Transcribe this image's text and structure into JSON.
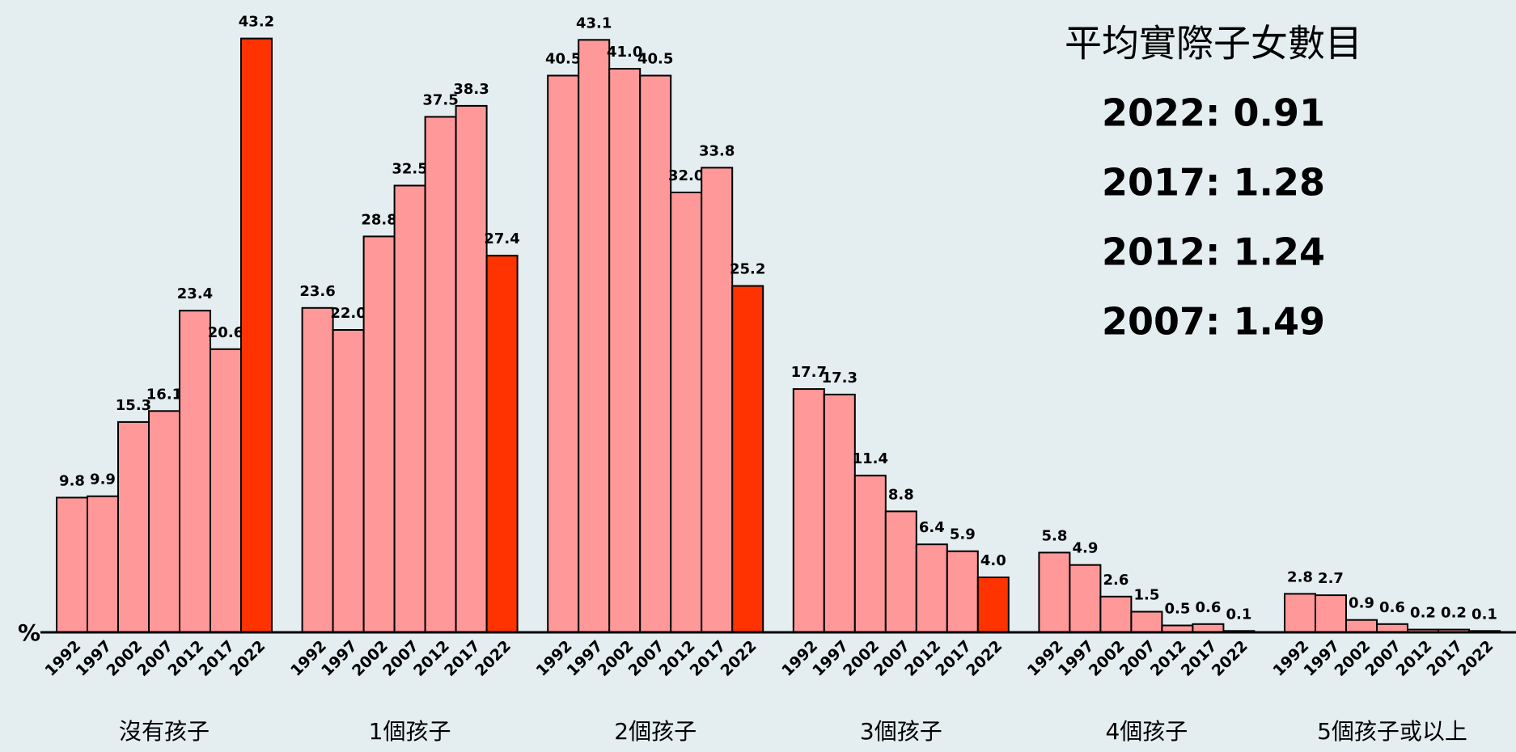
{
  "chart_data": {
    "type": "bar",
    "y_label": "%",
    "categories": [
      "沒有孩子",
      "1個孩子",
      "2個孩子",
      "3個孩子",
      "4個孩子",
      "5個孩子或以上"
    ],
    "series": [
      {
        "name": "1992",
        "color": "#ff9999",
        "values": [
          9.8,
          23.6,
          40.5,
          17.7,
          5.8,
          2.8
        ],
        "value_labels": [
          "9.8",
          "23.6",
          "40.5",
          "17.7",
          "5.8",
          "2.8"
        ]
      },
      {
        "name": "1997",
        "color": "#ff9999",
        "values": [
          9.9,
          22.0,
          43.1,
          17.3,
          4.9,
          2.7
        ],
        "value_labels": [
          "9.9",
          "22.0",
          "43.1",
          "17.3",
          "4.9",
          "2.7"
        ]
      },
      {
        "name": "2002",
        "color": "#ff9999",
        "values": [
          15.3,
          28.8,
          41.0,
          11.4,
          2.6,
          0.9
        ],
        "value_labels": [
          "15.3",
          "28.8",
          "41.0",
          "11.4",
          "2.6",
          "0.9"
        ]
      },
      {
        "name": "2007",
        "color": "#ff9999",
        "values": [
          16.1,
          32.5,
          40.5,
          8.8,
          1.5,
          0.6
        ],
        "value_labels": [
          "16.1",
          "32.5",
          "40.5",
          "8.8",
          "1.5",
          "0.6"
        ]
      },
      {
        "name": "2012",
        "color": "#ff9999",
        "values": [
          23.4,
          37.5,
          32.0,
          6.4,
          0.5,
          0.2
        ],
        "value_labels": [
          "23.4",
          "37.5",
          "32.0",
          "6.4",
          "0.5",
          "0.2"
        ]
      },
      {
        "name": "2017",
        "color": "#ff9999",
        "values": [
          20.6,
          38.3,
          33.8,
          5.9,
          0.6,
          0.2
        ],
        "value_labels": [
          "20.6",
          "38.3",
          "33.8",
          "5.9",
          "0.6",
          "0.2"
        ]
      },
      {
        "name": "2022",
        "color": "#ff3300",
        "values": [
          43.2,
          27.4,
          25.2,
          4.0,
          0.1,
          0.1
        ],
        "value_labels": [
          "43.2",
          "27.4",
          "25.2",
          "4.0",
          "0.1",
          "0.1"
        ]
      }
    ],
    "ylim": [
      0,
      45
    ],
    "annotations": {
      "title": "平均實際子女數目",
      "lines": [
        "2022: 0.91",
        "2017: 1.28",
        "2012: 1.24",
        "2007: 1.49"
      ]
    }
  }
}
